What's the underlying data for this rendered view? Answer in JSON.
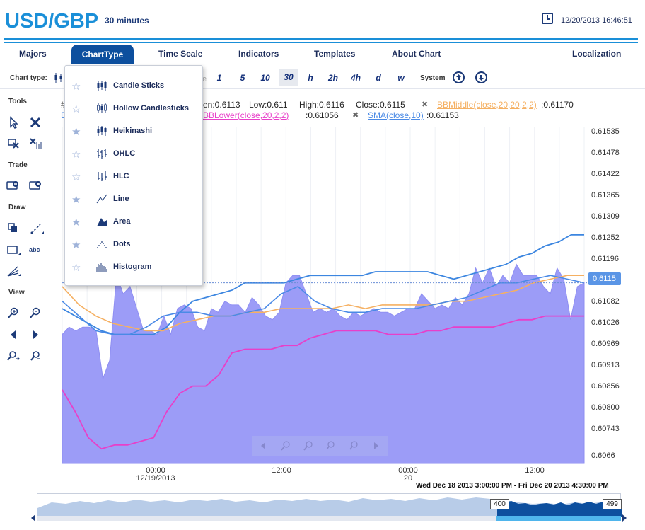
{
  "header": {
    "pair": "USD/GBP",
    "interval": "30 minutes",
    "datetime": "12/20/2013 16:46:51"
  },
  "menu": {
    "majors": "Majors",
    "charttype": "ChartType",
    "timescale": "Time Scale",
    "indicators": "Indicators",
    "templates": "Templates",
    "about": "About Chart",
    "localization": "Localization"
  },
  "toolbar": {
    "chart_type_label": "Chart type:",
    "partial_e": "e",
    "periods": [
      "1",
      "5",
      "10",
      "30",
      "h",
      "2h",
      "4h",
      "d",
      "w"
    ],
    "selected_period": "30",
    "system_label": "System"
  },
  "sidebar": {
    "tools": "Tools",
    "trade": "Trade",
    "draw": "Draw",
    "view": "View",
    "text_tool": "abc"
  },
  "dropdown": {
    "items": [
      {
        "label": "Candle Sticks",
        "starred": false,
        "icon": "candlestick-icon"
      },
      {
        "label": "Hollow Candlesticks",
        "starred": false,
        "icon": "hollow-candle-icon"
      },
      {
        "label": "Heikinashi",
        "starred": true,
        "icon": "heikinashi-icon"
      },
      {
        "label": "OHLC",
        "starred": false,
        "icon": "ohlc-icon"
      },
      {
        "label": "HLC",
        "starred": false,
        "icon": "hlc-icon"
      },
      {
        "label": "Line",
        "starred": true,
        "icon": "line-icon"
      },
      {
        "label": "Area",
        "starred": true,
        "icon": "area-icon"
      },
      {
        "label": "Dots",
        "starred": true,
        "icon": "dots-icon"
      },
      {
        "label": "Histogram",
        "starred": false,
        "icon": "histogram-icon"
      }
    ]
  },
  "legend": {
    "hash": "#",
    "open_partial": "en:0.6113",
    "low": "Low:0.611",
    "high": "High:0.6116",
    "close": "Close:0.6115",
    "bb_middle": "BBMiddle(close,20,20,2,2)",
    "bb_middle_value": ":0.61170",
    "bb_lower": "BBLower(close,20,2,2)",
    "bb_lower_value": ":0.61056",
    "sma": "SMA(close,10)",
    "sma_value": ":0.61153",
    "partial_b": "B",
    "close_x": "✖"
  },
  "chart": {
    "current_price": "0.6115",
    "range_text": "Wed Dec 18 2013 3:00:00 PM - Fri Dec 20 2013 4:30:00 PM",
    "scroller_left": "400",
    "scroller_right": "499",
    "colors": {
      "area_fill": "#9c9cf7",
      "area_stroke": "#8e8ef2",
      "bb_upper": "#3c86e0",
      "bb_lower": "#e83fc9",
      "bb_middle": "#f5b062",
      "sma": "#4a8ae6"
    }
  },
  "chart_data": {
    "type": "area",
    "y_ticks": [
      "0.61535",
      "0.61478",
      "0.61422",
      "0.61365",
      "0.61309",
      "0.61252",
      "0.61196",
      "0.6115",
      "0.61082",
      "0.61026",
      "0.60969",
      "0.60913",
      "0.60856",
      "0.60800",
      "0.60743",
      "0.6066"
    ],
    "x_ticks": [
      {
        "label": "00:00",
        "sub": "12/19/2013"
      },
      {
        "label": "12:00",
        "sub": ""
      },
      {
        "label": "00:00",
        "sub": "20"
      },
      {
        "label": "12:00",
        "sub": ""
      }
    ],
    "ylim": [
      0.6066,
      0.6156
    ],
    "series": [
      {
        "name": "Area",
        "values": [
          0.6101,
          0.6103,
          0.6102,
          0.6103,
          0.6103,
          0.6102,
          0.6089,
          0.6094,
          0.6117,
          0.6112,
          0.6114,
          0.6108,
          0.6102,
          0.6102,
          0.6101,
          0.6106,
          0.6101,
          0.6108,
          0.6109,
          0.6108,
          0.6103,
          0.6102,
          0.6108,
          0.6107,
          0.611,
          0.6109,
          0.6109,
          0.6107,
          0.6111,
          0.6109,
          0.6106,
          0.6105,
          0.6107,
          0.6115,
          0.6117,
          0.6117,
          0.6112,
          0.6107,
          0.6108,
          0.6107,
          0.6108,
          0.6106,
          0.6105,
          0.6107,
          0.6106,
          0.6107,
          0.6108,
          0.6107,
          0.6107,
          0.6106,
          0.6107,
          0.6108,
          0.6108,
          0.6112,
          0.611,
          0.6108,
          0.6109,
          0.6108,
          0.6111,
          0.6109,
          0.6112,
          0.6119,
          0.6115,
          0.6119,
          0.6114,
          0.6117,
          0.6115,
          0.612,
          0.6117,
          0.6117,
          0.6117,
          0.6114,
          0.6112,
          0.6119,
          0.6116,
          0.6105,
          0.6114,
          0.6115
        ]
      },
      {
        "name": "BBUpper",
        "values": [
          0.6108,
          0.6106,
          0.6104,
          0.6102,
          0.6101,
          0.6101,
          0.6101,
          0.6101,
          0.6103,
          0.6107,
          0.611,
          0.6111,
          0.6112,
          0.6113,
          0.6115,
          0.6115,
          0.6115,
          0.6115,
          0.6116,
          0.6117,
          0.6117,
          0.6117,
          0.6117,
          0.6117,
          0.6118,
          0.6118,
          0.6118,
          0.6118,
          0.6118,
          0.6117,
          0.6116,
          0.6117,
          0.6118,
          0.6119,
          0.612,
          0.6122,
          0.6123,
          0.6125,
          0.6126,
          0.6128,
          0.6128
        ]
      },
      {
        "name": "BBLower",
        "values": [
          0.6086,
          0.608,
          0.6073,
          0.607,
          0.6071,
          0.6071,
          0.6072,
          0.6073,
          0.608,
          0.6085,
          0.6087,
          0.6087,
          0.609,
          0.6096,
          0.6097,
          0.6097,
          0.6097,
          0.6098,
          0.6098,
          0.61,
          0.6101,
          0.6102,
          0.6102,
          0.6102,
          0.6102,
          0.6101,
          0.6101,
          0.6101,
          0.6102,
          0.6102,
          0.6103,
          0.6103,
          0.6103,
          0.6103,
          0.6104,
          0.6105,
          0.6105,
          0.6106,
          0.6106,
          0.6106,
          0.6106
        ]
      },
      {
        "name": "BBMiddle",
        "values": [
          0.6114,
          0.6109,
          0.6106,
          0.6104,
          0.6103,
          0.6102,
          0.6102,
          0.6104,
          0.6105,
          0.6106,
          0.6106,
          0.6107,
          0.6107,
          0.6108,
          0.6108,
          0.6108,
          0.6108,
          0.6109,
          0.6108,
          0.6109,
          0.6109,
          0.6109,
          0.6109,
          0.611,
          0.611,
          0.6111,
          0.6112,
          0.6113,
          0.6115,
          0.6116,
          0.6117,
          0.6117
        ]
      },
      {
        "name": "SMA",
        "values": [
          0.611,
          0.6106,
          0.6102,
          0.6101,
          0.6101,
          0.6103,
          0.6106,
          0.6107,
          0.6107,
          0.6106,
          0.6106,
          0.6107,
          0.6108,
          0.6112,
          0.6114,
          0.611,
          0.6108,
          0.6107,
          0.6107,
          0.6108,
          0.6108,
          0.6108,
          0.6109,
          0.611,
          0.6111,
          0.6113,
          0.6115,
          0.6115,
          0.6116,
          0.6117,
          0.6116,
          0.6115
        ]
      }
    ]
  }
}
